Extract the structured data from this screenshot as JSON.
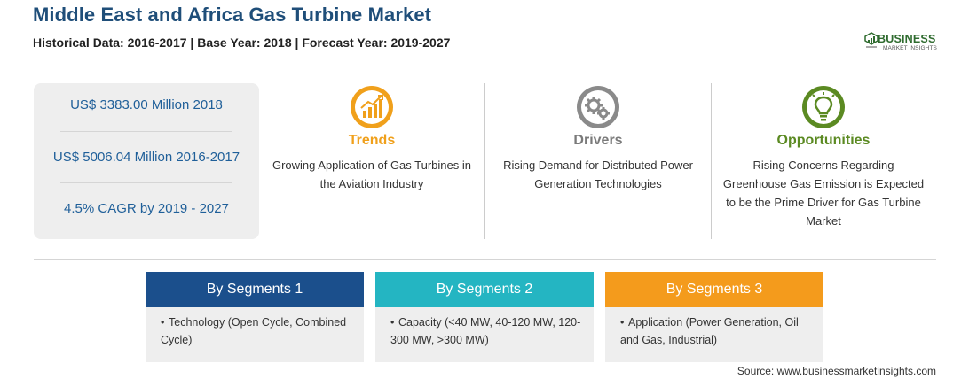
{
  "header": {
    "title": "Middle East and Africa Gas Turbine Market",
    "subtitle": "Historical Data: 2016-2017 | Base Year: 2018 | Forecast Year: 2019-2027"
  },
  "logo": {
    "word": "BUSINESS",
    "sub": "MARKET INSIGHTS",
    "color": "#2f6b2f"
  },
  "stats": [
    "US$ 3383.00 Million 2018",
    "US$ 5006.04 Million 2016-2017",
    "4.5% CAGR by 2019 - 2027"
  ],
  "columns": [
    {
      "heading": "Trends",
      "icon": "growth-chart-icon",
      "color": "#f0a01b",
      "text": "Growing Application of Gas Turbines in the Aviation Industry"
    },
    {
      "heading": "Drivers",
      "icon": "gears-icon",
      "color": "#7a7a7a",
      "text": "Rising Demand for Distributed Power Generation Technologies"
    },
    {
      "heading": "Opportunities",
      "icon": "lightbulb-icon",
      "color": "#5b8a22",
      "text": "Rising Concerns Regarding Greenhouse Gas Emission is Expected to be the Prime Driver for Gas Turbine Market"
    }
  ],
  "segments": [
    {
      "heading": "By Segments 1",
      "color": "#1b4f8c",
      "bullet": "•",
      "text": "Technology (Open Cycle, Combined Cycle)"
    },
    {
      "heading": "By Segments 2",
      "color": "#24b5c2",
      "bullet": "•",
      "text": "Capacity (<40 MW, 40-120 MW, 120-300 MW, >300 MW)"
    },
    {
      "heading": "By Segments 3",
      "color": "#f49b1c",
      "bullet": "•",
      "text": "Application (Power Generation, Oil and Gas, Industrial)"
    }
  ],
  "source": "Source: www.businessmarketinsights.com"
}
